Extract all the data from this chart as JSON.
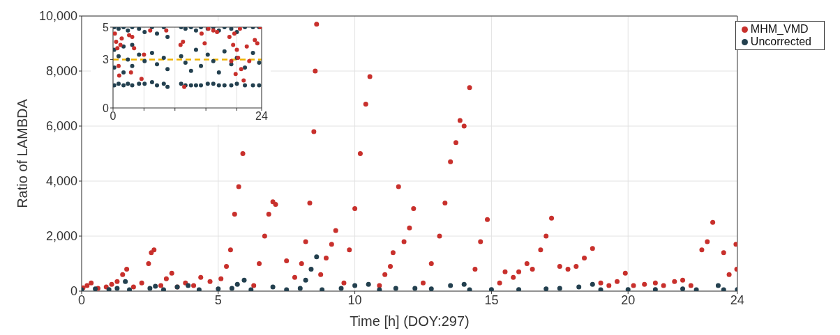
{
  "chart_data": [
    {
      "type": "scatter",
      "xlabel": "Time [h] (DOY:297)",
      "ylabel": "Ratio of LAMBDA",
      "xlim": [
        0,
        24
      ],
      "xticks": [
        0,
        5,
        10,
        15,
        20,
        24
      ],
      "ylim": [
        0,
        10000
      ],
      "yticks": [
        0,
        {
          "value": 2000,
          "label": "2,000"
        },
        {
          "value": 4000,
          "label": "4,000"
        },
        {
          "value": 6000,
          "label": "6,000"
        },
        {
          "value": 8000,
          "label": "8,000"
        },
        {
          "value": 10000,
          "label": "10,000"
        }
      ],
      "grid": true,
      "legend": "top right",
      "marker": "circle",
      "series": [
        {
          "name": "MHM_VMD",
          "color": "#c8302c",
          "x": [
            0.05,
            0.2,
            0.35,
            0.6,
            0.9,
            1.1,
            1.3,
            1.5,
            1.65,
            1.9,
            2.2,
            2.45,
            2.55,
            2.65,
            2.9,
            3.1,
            3.3,
            3.5,
            3.8,
            4.1,
            4.36,
            4.7,
            5.1,
            5.3,
            5.45,
            5.6,
            5.75,
            5.9,
            6.3,
            6.5,
            6.7,
            6.85,
            7.0,
            7.1,
            7.5,
            7.8,
            8.05,
            8.2,
            8.35,
            8.5,
            8.55,
            8.6,
            8.75,
            8.95,
            9.15,
            9.3,
            9.6,
            9.8,
            10.0,
            10.2,
            10.4,
            10.55,
            10.9,
            11.1,
            11.3,
            11.4,
            11.6,
            11.8,
            12.0,
            12.15,
            12.5,
            12.8,
            13.1,
            13.3,
            13.5,
            13.7,
            13.85,
            14.0,
            14.2,
            14.4,
            14.6,
            14.85,
            15.3,
            15.5,
            15.8,
            16.0,
            16.3,
            16.5,
            16.8,
            17.0,
            17.2,
            17.5,
            17.8,
            18.1,
            18.4,
            18.7,
            19.0,
            19.3,
            19.6,
            19.9,
            20.2,
            20.6,
            21.0,
            21.3,
            21.7,
            22.0,
            22.3,
            22.7,
            22.9,
            23.1,
            23.5,
            23.7,
            23.95,
            23.98
          ],
          "values": [
            120,
            200,
            300,
            100,
            150,
            250,
            350,
            600,
            800,
            150,
            300,
            1000,
            1400,
            1500,
            200,
            450,
            650,
            150,
            300,
            200,
            500,
            350,
            450,
            900,
            1500,
            2800,
            3800,
            5000,
            200,
            1000,
            2000,
            2800,
            3250,
            3150,
            1100,
            500,
            1000,
            1800,
            3200,
            5800,
            8000,
            9700,
            600,
            1200,
            1700,
            2200,
            300,
            1500,
            3000,
            5000,
            6800,
            7800,
            200,
            600,
            900,
            1400,
            3800,
            1800,
            2300,
            3000,
            300,
            1000,
            2000,
            3200,
            4700,
            5400,
            6200,
            6000,
            7400,
            800,
            1800,
            2600,
            300,
            700,
            500,
            700,
            1000,
            800,
            1500,
            2000,
            2650,
            900,
            800,
            900,
            1200,
            1550,
            300,
            200,
            350,
            650,
            200,
            250,
            300,
            200,
            350,
            400,
            200,
            1500,
            1800,
            2500,
            1400,
            600,
            1700,
            800
          ]
        },
        {
          "name": "Uncorrected",
          "color": "#23404f",
          "x": [
            0,
            0.5,
            1.0,
            1.3,
            1.6,
            1.75,
            2.5,
            2.7,
            3.0,
            3.5,
            3.9,
            4.3,
            5.0,
            5.5,
            5.7,
            5.95,
            6.2,
            7.0,
            7.5,
            8.0,
            8.2,
            8.4,
            8.6,
            8.8,
            9.5,
            10.0,
            10.5,
            10.9,
            11.5,
            12.2,
            12.8,
            13.5,
            14.0,
            14.2,
            15.0,
            16.0,
            17.0,
            17.5,
            18.2,
            18.7,
            19.0,
            20.0,
            21.0,
            22.0,
            22.5,
            23.3,
            23.5,
            24.0
          ],
          "values": [
            50,
            80,
            60,
            100,
            350,
            50,
            100,
            180,
            50,
            150,
            200,
            50,
            80,
            100,
            250,
            400,
            50,
            150,
            50,
            100,
            400,
            800,
            1250,
            50,
            100,
            200,
            250,
            50,
            100,
            100,
            80,
            200,
            250,
            50,
            60,
            60,
            80,
            100,
            150,
            250,
            50,
            60,
            60,
            80,
            50,
            200,
            50,
            60
          ]
        }
      ]
    },
    {
      "type": "scatter",
      "xlim": [
        0,
        24
      ],
      "xticks": [
        0,
        {
          "value": 5,
          "label": null
        },
        {
          "value": 10,
          "label": null
        },
        {
          "value": 15,
          "label": null
        },
        {
          "value": 20,
          "label": null
        },
        24
      ],
      "ylim": [
        0,
        5
      ],
      "yticks": [
        0,
        3,
        5
      ],
      "grid": "x",
      "marker": "circle",
      "ref_lines": [
        {
          "axis": "y",
          "value": 3,
          "color": "#f0b400",
          "line_style": "dashed"
        }
      ],
      "series": [
        {
          "color": "#23404f",
          "x": [
            0.2,
            0.2,
            0.2,
            0.2,
            0.9,
            0.9,
            0.9,
            1.7,
            1.7,
            1.7,
            1.7,
            2.4,
            2.4,
            2.4,
            3.1,
            3.1,
            3.1,
            3.1,
            4.2,
            4.2,
            4.2,
            5.1,
            5.1,
            5.1,
            6.3,
            6.3,
            6.3,
            7.1,
            7.1,
            7.1,
            8.2,
            8.2,
            8.2,
            8.8,
            8.8,
            8.8,
            11.0,
            11.0,
            11.0,
            11.7,
            11.7,
            11.7,
            12.6,
            12.6,
            12.6,
            13.4,
            13.4,
            13.4,
            14.2,
            14.2,
            14.2,
            15.3,
            15.3,
            15.3,
            16.2,
            16.2,
            16.2,
            17.1,
            17.1,
            17.1,
            18.0,
            18.0,
            18.0,
            19.1,
            19.1,
            19.1,
            20.0,
            20.0,
            20.0,
            21.3,
            21.3,
            21.3,
            22.6,
            22.6,
            22.6,
            23.6,
            23.6,
            23.6
          ],
          "values": [
            1.4,
            2.5,
            3.6,
            5.0,
            1.5,
            3.2,
            4.9,
            1.4,
            2.2,
            3.8,
            5.0,
            1.5,
            3.0,
            4.8,
            1.4,
            2.6,
            3.9,
            5.0,
            1.5,
            3.3,
            4.9,
            1.5,
            2.9,
            4.7,
            1.6,
            3.4,
            5.0,
            1.4,
            2.7,
            4.6,
            1.5,
            3.1,
            5.0,
            1.3,
            2.4,
            4.4,
            1.5,
            3.2,
            5.0,
            1.4,
            2.8,
            4.9,
            1.4,
            2.3,
            5.0,
            1.4,
            3.6,
            4.8,
            1.4,
            2.6,
            5.0,
            1.5,
            3.3,
            4.9,
            1.5,
            2.9,
            5.0,
            1.4,
            2.2,
            4.8,
            1.4,
            3.5,
            5.0,
            1.4,
            2.7,
            4.9,
            1.5,
            3.1,
            4.7,
            1.4,
            2.5,
            5.0,
            1.4,
            3.4,
            5.0,
            1.4,
            2.8,
            5.0
          ]
        },
        {
          "color": "#c8302c",
          "x": [
            0.3,
            0.5,
            0.7,
            0.9,
            1.0,
            1.2,
            1.4,
            2.6,
            2.9,
            3.1,
            3.4,
            4.6,
            5.0,
            6.0,
            8.6,
            10.9,
            11.3,
            11.5,
            14.3,
            14.8,
            15.4,
            16.2,
            16.8,
            18.8,
            19.1,
            19.4,
            19.6,
            19.8,
            20.0,
            20.2,
            20.5,
            20.7,
            21.1,
            21.6,
            22.0,
            22.9,
            23.3,
            23.8
          ],
          "values": [
            4.6,
            4.1,
            3.7,
            2.6,
            2.0,
            3.9,
            4.3,
            4.5,
            2.2,
            4.4,
            3.7,
            1.8,
            3.3,
            4.8,
            4.8,
            3.9,
            4.1,
            1.3,
            4.6,
            4.0,
            4.9,
            4.8,
            4.7,
            4.4,
            2.9,
            3.9,
            4.6,
            2.1,
            3.6,
            3.1,
            4.9,
            2.4,
            1.7,
            3.8,
            2.9,
            4.2,
            4.0,
            5.0
          ]
        }
      ]
    }
  ]
}
